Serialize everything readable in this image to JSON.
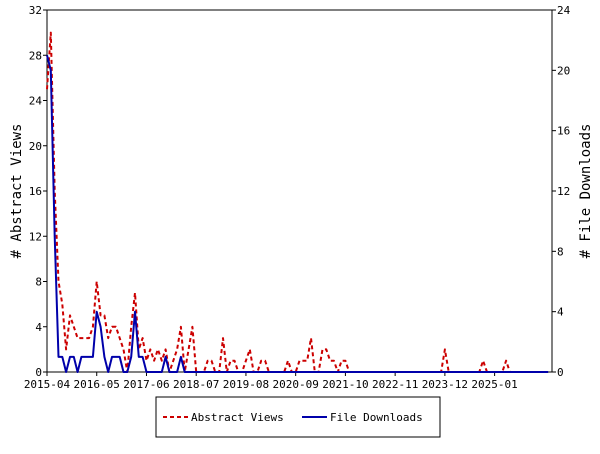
{
  "chart_data": {
    "type": "line",
    "title": "",
    "ylabel_left": "# Abstract Views",
    "ylabel_right": "# File Downloads",
    "ylim_left": [
      0,
      32
    ],
    "ylim_right": [
      0,
      24
    ],
    "yticks_left": [
      "0",
      "4",
      "8",
      "12",
      "16",
      "20",
      "24",
      "28",
      "32"
    ],
    "yticks_right": [
      "0",
      "4",
      "8",
      "12",
      "16",
      "20",
      "24"
    ],
    "xlim": [
      "2015-04",
      "2026-04"
    ],
    "xticks": [
      "2015-04",
      "2016-05",
      "2017-06",
      "2018-07",
      "2019-08",
      "2020-09",
      "2021-10",
      "2022-11",
      "2023-12",
      "2025-01"
    ],
    "grid": false,
    "legend_position": "bottom",
    "series": [
      {
        "name": "Abstract Views",
        "axis": "left",
        "color": "#cc0000",
        "style": "dashed",
        "points": [
          [
            "2015-04",
            25
          ],
          [
            "2015-05",
            30
          ],
          [
            "2015-06",
            16
          ],
          [
            "2015-07",
            8
          ],
          [
            "2015-08",
            6
          ],
          [
            "2015-09",
            2
          ],
          [
            "2015-10",
            5
          ],
          [
            "2015-11",
            4
          ],
          [
            "2015-12",
            3
          ],
          [
            "2016-01",
            3
          ],
          [
            "2016-02",
            3
          ],
          [
            "2016-03",
            3
          ],
          [
            "2016-04",
            4
          ],
          [
            "2016-05",
            8
          ],
          [
            "2016-06",
            5
          ],
          [
            "2016-07",
            5
          ],
          [
            "2016-08",
            3
          ],
          [
            "2016-09",
            4
          ],
          [
            "2016-10",
            4
          ],
          [
            "2016-11",
            3
          ],
          [
            "2016-12",
            2
          ],
          [
            "2017-01",
            0
          ],
          [
            "2017-02",
            4
          ],
          [
            "2017-03",
            7
          ],
          [
            "2017-04",
            2
          ],
          [
            "2017-05",
            3
          ],
          [
            "2017-06",
            1
          ],
          [
            "2017-07",
            2
          ],
          [
            "2017-08",
            1
          ],
          [
            "2017-09",
            2
          ],
          [
            "2017-10",
            1
          ],
          [
            "2017-11",
            2
          ],
          [
            "2017-12",
            0
          ],
          [
            "2018-01",
            1
          ],
          [
            "2018-02",
            2
          ],
          [
            "2018-03",
            4
          ],
          [
            "2018-04",
            0
          ],
          [
            "2018-05",
            2
          ],
          [
            "2018-06",
            4
          ],
          [
            "2018-07",
            0
          ],
          [
            "2018-08",
            0
          ],
          [
            "2018-09",
            0
          ],
          [
            "2018-10",
            1
          ],
          [
            "2018-11",
            1
          ],
          [
            "2018-12",
            0
          ],
          [
            "2019-01",
            0
          ],
          [
            "2019-02",
            3
          ],
          [
            "2019-03",
            0
          ],
          [
            "2019-04",
            1
          ],
          [
            "2019-05",
            1
          ],
          [
            "2019-06",
            0
          ],
          [
            "2019-07",
            0
          ],
          [
            "2019-08",
            1
          ],
          [
            "2019-09",
            2
          ],
          [
            "2019-10",
            0
          ],
          [
            "2019-11",
            0
          ],
          [
            "2019-12",
            1
          ],
          [
            "2020-01",
            1
          ],
          [
            "2020-02",
            0
          ],
          [
            "2020-03",
            0
          ],
          [
            "2020-04",
            0
          ],
          [
            "2020-05",
            0
          ],
          [
            "2020-06",
            0
          ],
          [
            "2020-07",
            1
          ],
          [
            "2020-08",
            0
          ],
          [
            "2020-09",
            0
          ],
          [
            "2020-10",
            1
          ],
          [
            "2020-11",
            1
          ],
          [
            "2020-12",
            1
          ],
          [
            "2021-01",
            3
          ],
          [
            "2021-02",
            0
          ],
          [
            "2021-03",
            0
          ],
          [
            "2021-04",
            2
          ],
          [
            "2021-05",
            2
          ],
          [
            "2021-06",
            1
          ],
          [
            "2021-07",
            1
          ],
          [
            "2021-08",
            0
          ],
          [
            "2021-09",
            1
          ],
          [
            "2021-10",
            1
          ],
          [
            "2021-11",
            0
          ],
          [
            "2021-12",
            0
          ],
          [
            "2022-01",
            0
          ],
          [
            "2022-06",
            0
          ],
          [
            "2022-12",
            0
          ],
          [
            "2023-06",
            0
          ],
          [
            "2023-11",
            0
          ],
          [
            "2023-12",
            2
          ],
          [
            "2024-01",
            0
          ],
          [
            "2024-06",
            0
          ],
          [
            "2024-09",
            0
          ],
          [
            "2024-10",
            1
          ],
          [
            "2024-11",
            0
          ],
          [
            "2025-03",
            0
          ],
          [
            "2025-04",
            1
          ],
          [
            "2025-05",
            0
          ],
          [
            "2025-10",
            0
          ],
          [
            "2026-03",
            0
          ]
        ]
      },
      {
        "name": "File Downloads",
        "axis": "right",
        "color": "#0000aa",
        "style": "solid",
        "points": [
          [
            "2015-04",
            21
          ],
          [
            "2015-05",
            20
          ],
          [
            "2015-06",
            9
          ],
          [
            "2015-07",
            1
          ],
          [
            "2015-08",
            1
          ],
          [
            "2015-09",
            0
          ],
          [
            "2015-10",
            1
          ],
          [
            "2015-11",
            1
          ],
          [
            "2015-12",
            0
          ],
          [
            "2016-01",
            1
          ],
          [
            "2016-02",
            1
          ],
          [
            "2016-03",
            1
          ],
          [
            "2016-04",
            1
          ],
          [
            "2016-05",
            4
          ],
          [
            "2016-06",
            3
          ],
          [
            "2016-07",
            1
          ],
          [
            "2016-08",
            0
          ],
          [
            "2016-09",
            1
          ],
          [
            "2016-10",
            1
          ],
          [
            "2016-11",
            1
          ],
          [
            "2016-12",
            0
          ],
          [
            "2017-01",
            0
          ],
          [
            "2017-02",
            1
          ],
          [
            "2017-03",
            4
          ],
          [
            "2017-04",
            1
          ],
          [
            "2017-05",
            1
          ],
          [
            "2017-06",
            0
          ],
          [
            "2017-07",
            0
          ],
          [
            "2017-08",
            0
          ],
          [
            "2017-09",
            0
          ],
          [
            "2017-10",
            0
          ],
          [
            "2017-11",
            1
          ],
          [
            "2017-12",
            0
          ],
          [
            "2018-01",
            0
          ],
          [
            "2018-02",
            0
          ],
          [
            "2018-03",
            1
          ],
          [
            "2018-04",
            0
          ],
          [
            "2018-05",
            0
          ],
          [
            "2018-06",
            0
          ],
          [
            "2019-06",
            0
          ],
          [
            "2020-06",
            0
          ],
          [
            "2021-06",
            0
          ],
          [
            "2022-06",
            0
          ],
          [
            "2023-06",
            0
          ],
          [
            "2024-06",
            0
          ],
          [
            "2025-06",
            0
          ],
          [
            "2026-03",
            0
          ]
        ]
      }
    ]
  }
}
